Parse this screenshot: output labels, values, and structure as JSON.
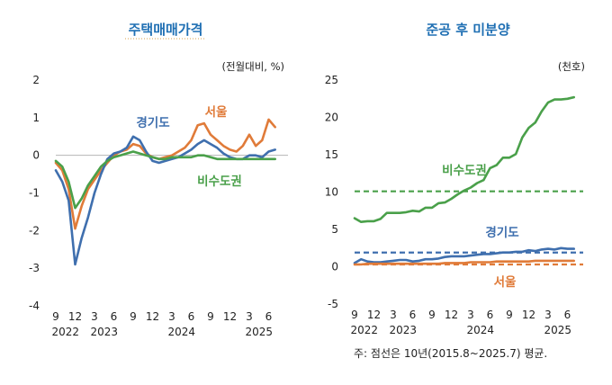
{
  "chart_data": [
    {
      "type": "line",
      "title": "주택매매가격",
      "unit": "(전월대비, %)",
      "ylim": [
        -4,
        2
      ],
      "yticks": [
        "2",
        "1",
        "0",
        "-1",
        "-2",
        "-3",
        "-4"
      ],
      "xlim": [
        0,
        36
      ],
      "month_ticks": [
        {
          "x": 0,
          "label": "9"
        },
        {
          "x": 3,
          "label": "12"
        },
        {
          "x": 6,
          "label": "3"
        },
        {
          "x": 9,
          "label": "6"
        },
        {
          "x": 12,
          "label": "9"
        },
        {
          "x": 15,
          "label": "12"
        },
        {
          "x": 18,
          "label": "3"
        },
        {
          "x": 21,
          "label": "6"
        },
        {
          "x": 24,
          "label": "9"
        },
        {
          "x": 27,
          "label": "12"
        },
        {
          "x": 30,
          "label": "3"
        },
        {
          "x": 33,
          "label": "6"
        }
      ],
      "year_ticks": [
        {
          "x": 1.5,
          "label": "2022"
        },
        {
          "x": 7.5,
          "label": "2023"
        },
        {
          "x": 19.5,
          "label": "2024"
        },
        {
          "x": 31.5,
          "label": "2025"
        }
      ],
      "x": [
        0,
        1,
        2,
        3,
        4,
        5,
        6,
        7,
        8,
        9,
        10,
        11,
        12,
        13,
        14,
        15,
        16,
        17,
        18,
        19,
        20,
        21,
        22,
        23,
        24,
        25,
        26,
        27,
        28,
        29,
        30,
        31,
        32,
        33,
        34,
        35
      ],
      "series": [
        {
          "name": "서울",
          "color": "#e07b39",
          "values": [
            -0.2,
            -0.4,
            -0.9,
            -1.95,
            -1.35,
            -0.9,
            -0.65,
            -0.4,
            -0.2,
            0,
            0.1,
            0.15,
            0.3,
            0.25,
            0.05,
            -0.05,
            -0.1,
            -0.05,
            0,
            0.1,
            0.2,
            0.4,
            0.8,
            0.85,
            0.55,
            0.4,
            0.25,
            0.15,
            0.1,
            0.25,
            0.55,
            0.25,
            0.4,
            0.95,
            0.75,
            null
          ]
        },
        {
          "name": "경기도",
          "color": "#3f6fae",
          "values": [
            -0.4,
            -0.7,
            -1.2,
            -2.9,
            -2.2,
            -1.65,
            -1.0,
            -0.5,
            -0.1,
            0.05,
            0.1,
            0.2,
            0.5,
            0.4,
            0.1,
            -0.15,
            -0.2,
            -0.15,
            -0.1,
            -0.05,
            0.05,
            0.15,
            0.3,
            0.4,
            0.3,
            0.2,
            0.05,
            -0.05,
            -0.1,
            -0.1,
            0,
            0,
            -0.05,
            0.1,
            0.15,
            null
          ]
        },
        {
          "name": "비수도권",
          "color": "#4aa04a",
          "values": [
            -0.15,
            -0.3,
            -0.7,
            -1.4,
            -1.15,
            -0.8,
            -0.55,
            -0.3,
            -0.15,
            -0.05,
            0,
            0.05,
            0.1,
            0.05,
            0,
            -0.05,
            -0.1,
            -0.1,
            -0.05,
            -0.05,
            -0.05,
            -0.05,
            0,
            0,
            -0.05,
            -0.1,
            -0.1,
            -0.1,
            -0.1,
            -0.1,
            -0.1,
            -0.1,
            -0.1,
            -0.1,
            -0.1,
            null
          ]
        }
      ],
      "labels": {
        "서울": "서울",
        "경기도": "경기도",
        "비수도권": "비수도권"
      }
    },
    {
      "type": "line",
      "title": "준공 후 미분양",
      "unit": "(천호)",
      "ylim": [
        -5,
        25
      ],
      "yticks": [
        "25",
        "20",
        "15",
        "10",
        "5",
        "0",
        "-5"
      ],
      "xlim": [
        0,
        36
      ],
      "month_ticks": [
        {
          "x": 0,
          "label": "9"
        },
        {
          "x": 3,
          "label": "12"
        },
        {
          "x": 6,
          "label": "3"
        },
        {
          "x": 9,
          "label": "6"
        },
        {
          "x": 12,
          "label": "9"
        },
        {
          "x": 15,
          "label": "12"
        },
        {
          "x": 18,
          "label": "3"
        },
        {
          "x": 21,
          "label": "6"
        },
        {
          "x": 24,
          "label": "9"
        },
        {
          "x": 27,
          "label": "12"
        },
        {
          "x": 30,
          "label": "3"
        },
        {
          "x": 33,
          "label": "6"
        }
      ],
      "year_ticks": [
        {
          "x": 1.5,
          "label": "2022"
        },
        {
          "x": 7.5,
          "label": "2023"
        },
        {
          "x": 19.5,
          "label": "2024"
        },
        {
          "x": 31.5,
          "label": "2025"
        }
      ],
      "x": [
        0,
        1,
        2,
        3,
        4,
        5,
        6,
        7,
        8,
        9,
        10,
        11,
        12,
        13,
        14,
        15,
        16,
        17,
        18,
        19,
        20,
        21,
        22,
        23,
        24,
        25,
        26,
        27,
        28,
        29,
        30,
        31,
        32,
        33,
        34,
        35
      ],
      "series": [
        {
          "name": "비수도권",
          "color": "#4aa04a",
          "values": [
            6.5,
            6.0,
            6.1,
            6.1,
            6.4,
            7.2,
            7.2,
            7.2,
            7.3,
            7.5,
            7.4,
            7.9,
            7.9,
            8.5,
            8.6,
            9.1,
            9.7,
            10.2,
            10.6,
            11.2,
            11.6,
            13.2,
            13.6,
            14.6,
            14.6,
            15.1,
            17.3,
            18.6,
            19.3,
            20.8,
            22.0,
            22.4,
            22.4,
            22.5,
            22.7,
            null
          ]
        },
        {
          "name": "경기도",
          "color": "#3f6fae",
          "values": [
            0.5,
            1.0,
            0.7,
            0.6,
            0.6,
            0.7,
            0.8,
            0.9,
            0.9,
            0.7,
            0.8,
            1.0,
            1.0,
            1.1,
            1.3,
            1.4,
            1.4,
            1.4,
            1.5,
            1.6,
            1.7,
            1.7,
            1.8,
            1.9,
            1.9,
            2.0,
            2.0,
            2.2,
            2.1,
            2.3,
            2.4,
            2.3,
            2.5,
            2.4,
            2.4,
            null
          ]
        },
        {
          "name": "서울",
          "color": "#e07b39",
          "values": [
            0.3,
            0.3,
            0.4,
            0.4,
            0.4,
            0.4,
            0.4,
            0.4,
            0.4,
            0.4,
            0.4,
            0.4,
            0.4,
            0.4,
            0.5,
            0.5,
            0.5,
            0.5,
            0.6,
            0.6,
            0.6,
            0.6,
            0.7,
            0.7,
            0.7,
            0.7,
            0.7,
            0.7,
            0.8,
            0.8,
            0.8,
            0.8,
            0.8,
            0.8,
            0.8,
            null
          ]
        }
      ],
      "averages": [
        {
          "name": "비수도권",
          "value": 10.1,
          "color": "#4aa04a"
        },
        {
          "name": "경기도",
          "value": 1.9,
          "color": "#3f6fae"
        },
        {
          "name": "서울",
          "value": 0.3,
          "color": "#e07b39"
        }
      ],
      "labels": {
        "서울": "서울",
        "경기도": "경기도",
        "비수도권": "비수도권"
      },
      "note": "주: 점선은 10년(2015.8~2025.7) 평균."
    }
  ]
}
